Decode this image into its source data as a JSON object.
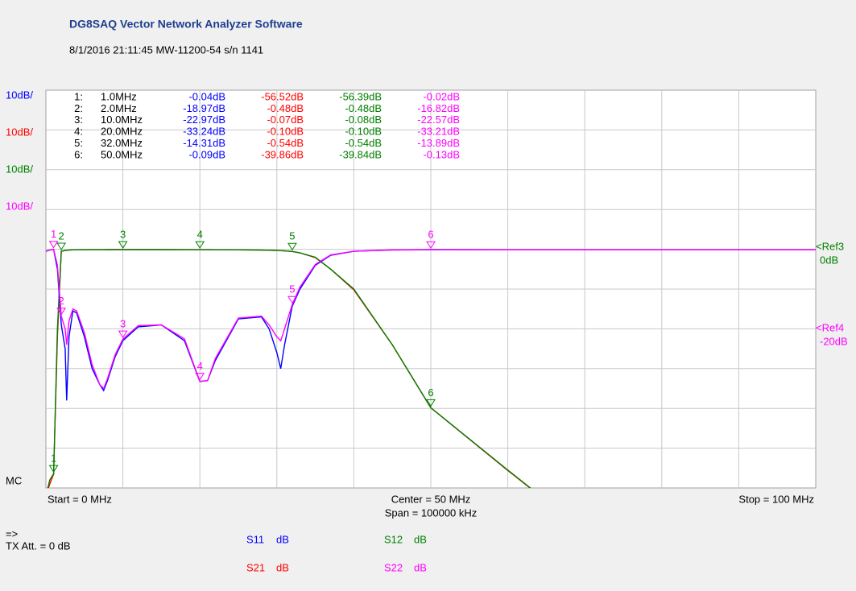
{
  "header": {
    "title": "DG8SAQ Vector Network Analyzer Software",
    "subtitle": "8/1/2016  21:11:45   MW-11200-54 s/n 1141"
  },
  "scales": [
    {
      "label": "10dB/",
      "color": "#0000ff"
    },
    {
      "label": "10dB/",
      "color": "#ff0000"
    },
    {
      "label": "10dB/",
      "color": "#008000"
    },
    {
      "label": "10dB/",
      "color": "#ff00ff"
    }
  ],
  "markers": [
    {
      "id": "1:",
      "freq": {
        "value": 1,
        "label": "1.0MHz"
      },
      "readings": [
        "-0.04dB",
        "-56.52dB",
        "-56.39dB",
        "-0.02dB"
      ]
    },
    {
      "id": "2:",
      "freq": {
        "value": 2,
        "label": "2.0MHz"
      },
      "readings": [
        "-18.97dB",
        "-0.48dB",
        "-0.48dB",
        "-16.82dB"
      ]
    },
    {
      "id": "3:",
      "freq": {
        "value": 10,
        "label": "10.0MHz"
      },
      "readings": [
        "-22.97dB",
        "-0.07dB",
        "-0.08dB",
        "-22.57dB"
      ]
    },
    {
      "id": "4:",
      "freq": {
        "value": 20,
        "label": "20.0MHz"
      },
      "readings": [
        "-33.24dB",
        "-0.10dB",
        "-0.10dB",
        "-33.21dB"
      ]
    },
    {
      "id": "5:",
      "freq": {
        "value": 32,
        "label": "32.0MHz"
      },
      "readings": [
        "-14.31dB",
        "-0.54dB",
        "-0.54dB",
        "-13.89dB"
      ]
    },
    {
      "id": "6:",
      "freq": {
        "value": 50,
        "label": "50.0MHz"
      },
      "readings": [
        "-0.09dB",
        "-39.86dB",
        "-39.84dB",
        "-0.13dB"
      ]
    }
  ],
  "marker_tags": [
    "1",
    "2",
    "3",
    "4",
    "5",
    "6"
  ],
  "plot": {
    "xlim": [
      0,
      100
    ],
    "ylim": [
      -60,
      40
    ],
    "x": [
      0,
      0.5,
      1,
      1.5,
      2,
      2.5,
      2.7,
      3,
      3.5,
      4,
      5,
      6,
      7,
      7.5,
      8,
      9,
      10,
      12,
      15,
      18,
      20,
      21,
      22,
      25,
      28,
      29,
      30,
      30.5,
      31,
      32,
      33,
      35,
      37,
      40,
      45,
      50,
      60,
      63,
      70,
      80,
      90,
      100
    ],
    "traces": [
      {
        "name": "S21",
        "color": "#ff0000",
        "values": [
          -62,
          -59,
          -56.52,
          -22,
          -0.48,
          -0.3,
          -0.25,
          -0.2,
          -0.15,
          -0.12,
          -0.1,
          -0.1,
          -0.1,
          -0.1,
          -0.09,
          -0.08,
          -0.07,
          -0.08,
          -0.09,
          -0.1,
          -0.1,
          -0.1,
          -0.12,
          -0.15,
          -0.2,
          -0.25,
          -0.3,
          -0.35,
          -0.4,
          -0.54,
          -0.9,
          -2.1,
          -5,
          -10.2,
          -24,
          -39.86,
          -55.6,
          -60.2,
          null,
          null,
          null,
          null
        ]
      },
      {
        "name": "S12",
        "color": "#008000",
        "values": [
          -62,
          -58,
          -56.39,
          -20,
          -0.48,
          -0.3,
          -0.25,
          -0.2,
          -0.15,
          -0.12,
          -0.1,
          -0.1,
          -0.1,
          -0.1,
          -0.09,
          -0.09,
          -0.08,
          -0.08,
          -0.09,
          -0.1,
          -0.1,
          -0.1,
          -0.12,
          -0.15,
          -0.2,
          -0.25,
          -0.3,
          -0.35,
          -0.4,
          -0.54,
          -0.9,
          -2,
          -5,
          -10,
          -24,
          -39.84,
          -55.5,
          -60.1,
          null,
          null,
          null,
          null
        ]
      },
      {
        "name": "S11",
        "color": "#0000ff",
        "values": [
          -0.5,
          -0.2,
          -0.04,
          -5,
          -18.97,
          -25,
          -38,
          -22,
          -15.5,
          -16,
          -22,
          -30,
          -34,
          -35.5,
          -33,
          -27,
          -22.97,
          -19.5,
          -19,
          -23,
          -33.24,
          -33,
          -28,
          -17.5,
          -17,
          -20,
          -26,
          -30,
          -24,
          -14.31,
          -10,
          -4,
          -1.5,
          -0.5,
          -0.15,
          -0.09,
          -0.1,
          -0.1,
          -0.1,
          -0.1,
          -0.1,
          -0.1
        ]
      },
      {
        "name": "S22",
        "color": "#ff00ff",
        "values": [
          -0.4,
          -0.2,
          -0.02,
          -4,
          -16.82,
          -20,
          -24,
          -18,
          -15,
          -15.5,
          -21,
          -29,
          -34,
          -35,
          -32.5,
          -26.5,
          -22.57,
          -19.2,
          -19,
          -22.5,
          -33.21,
          -33,
          -27.5,
          -17.3,
          -16.8,
          -19,
          -22,
          -23,
          -20,
          -13.89,
          -9.5,
          -3.8,
          -1.4,
          -0.5,
          -0.18,
          -0.13,
          -0.12,
          -0.12,
          -0.12,
          -0.12,
          -0.12,
          -0.12
        ]
      }
    ]
  },
  "refs": [
    {
      "label": "<Ref3",
      "value_label": "0dB",
      "color": "#008000"
    },
    {
      "label": "<Ref4",
      "value_label": "-20dB",
      "color": "#ff00ff"
    }
  ],
  "mc": "MC",
  "axis": {
    "start": "Start = 0 MHz",
    "center": "Center = 50 MHz",
    "span": "Span = 100000 kHz",
    "stop": "Stop = 100 MHz"
  },
  "footer": {
    "arrow": "=>",
    "tx": "TX Att.  = 0 dB"
  },
  "legend": [
    {
      "name": "S11",
      "unit": "dB",
      "color": "#0000ff"
    },
    {
      "name": "S12",
      "unit": "dB",
      "color": "#008000"
    },
    {
      "name": "S21",
      "unit": "dB",
      "color": "#ff0000"
    },
    {
      "name": "S22",
      "unit": "dB",
      "color": "#ff00ff"
    }
  ]
}
